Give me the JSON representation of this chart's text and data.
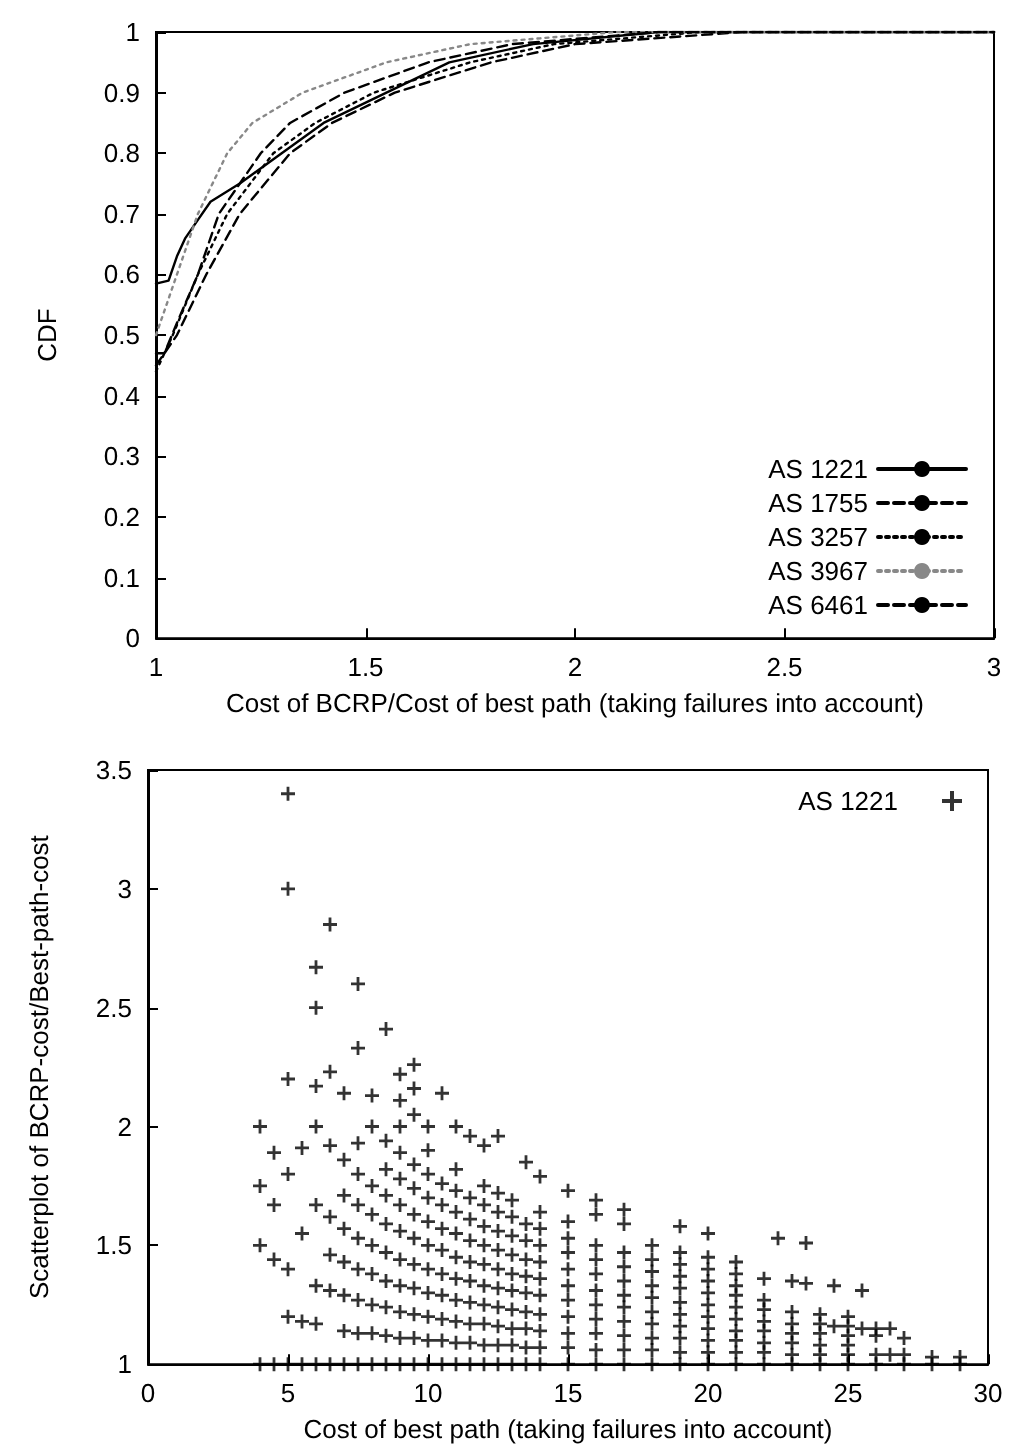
{
  "chart_data": [
    {
      "type": "line",
      "xlabel": "Cost of BCRP/Cost of best path (taking failures into account)",
      "ylabel": "CDF",
      "xlim": [
        1,
        3
      ],
      "xticks": [
        1,
        1.5,
        2,
        2.5,
        3
      ],
      "ylim": [
        0,
        1
      ],
      "yticks": [
        0,
        0.1,
        0.2,
        0.3,
        0.4,
        0.5,
        0.6,
        0.7,
        0.8,
        0.9,
        1
      ],
      "grid": false,
      "legend": "bottom right",
      "marker": "none",
      "series": [
        {
          "name": "AS 1221",
          "color": "#000000",
          "line_style": "solid",
          "x": [
            1,
            1.03,
            1.05,
            1.07,
            1.1,
            1.13,
            1.2,
            1.3,
            1.4,
            1.55,
            1.7,
            1.9,
            2.2,
            3
          ],
          "values": [
            0.585,
            0.59,
            0.63,
            0.66,
            0.69,
            0.72,
            0.75,
            0.8,
            0.85,
            0.9,
            0.95,
            0.98,
            1,
            1
          ]
        },
        {
          "name": "AS 1755",
          "color": "#000000",
          "line_style": "dashed",
          "x": [
            1,
            1.05,
            1.12,
            1.2,
            1.32,
            1.42,
            1.57,
            1.8,
            2.0,
            2.4,
            3
          ],
          "values": [
            0.45,
            0.5,
            0.6,
            0.7,
            0.8,
            0.85,
            0.9,
            0.95,
            0.98,
            1,
            1
          ]
        },
        {
          "name": "AS 3257",
          "color": "#000000",
          "line_style": "dotted",
          "x": [
            1,
            1.04,
            1.1,
            1.17,
            1.28,
            1.38,
            1.52,
            1.75,
            1.95,
            2.3,
            3
          ],
          "values": [
            0.44,
            0.5,
            0.6,
            0.7,
            0.8,
            0.85,
            0.9,
            0.95,
            0.98,
            1,
            1
          ]
        },
        {
          "name": "AS 3967",
          "color": "#888888",
          "line_style": "dotted",
          "x": [
            1,
            1.05,
            1.1,
            1.17,
            1.23,
            1.35,
            1.55,
            1.75,
            2.1,
            3
          ],
          "values": [
            0.5,
            0.6,
            0.7,
            0.8,
            0.85,
            0.9,
            0.95,
            0.98,
            1,
            1
          ]
        },
        {
          "name": "AS 6461",
          "color": "#000000",
          "line_style": "dashed",
          "x": [
            1,
            1.02,
            1.05,
            1.1,
            1.15,
            1.25,
            1.32,
            1.45,
            1.65,
            1.85,
            2.2,
            3
          ],
          "values": [
            0.47,
            0.47,
            0.52,
            0.6,
            0.7,
            0.8,
            0.85,
            0.9,
            0.95,
            0.98,
            1,
            1
          ]
        }
      ]
    },
    {
      "type": "scatter",
      "xlabel": "Cost of best path (taking failures into account)",
      "ylabel": "Scatterplot of BCRP-cost/Best-path-cost",
      "xlim": [
        0,
        30
      ],
      "xticks": [
        0,
        5,
        10,
        15,
        20,
        25,
        30
      ],
      "ylim": [
        1,
        3.5
      ],
      "yticks": [
        1,
        1.5,
        2,
        2.5,
        3,
        3.5
      ],
      "grid": false,
      "legend": "top right",
      "marker": "cross",
      "series": [
        {
          "name": "AS 1221",
          "color": "#000000",
          "x": [
            4,
            4,
            4,
            4,
            4.5,
            4.5,
            4.5,
            4.5,
            5,
            5,
            5,
            5,
            5,
            5,
            5,
            5.5,
            5.5,
            5.5,
            5.5,
            6,
            6,
            6,
            6,
            6,
            6,
            6,
            6,
            6.5,
            6.5,
            6.5,
            6.5,
            6.5,
            6.5,
            6.5,
            7,
            7,
            7,
            7,
            7,
            7,
            7,
            7,
            7.5,
            7.5,
            7.5,
            7.5,
            7.5,
            7.5,
            7.5,
            7.5,
            7.5,
            7.5,
            8,
            8,
            8,
            8,
            8,
            8,
            8,
            8,
            8,
            8.5,
            8.5,
            8.5,
            8.5,
            8.5,
            8.5,
            8.5,
            8.5,
            8.5,
            8.5,
            9,
            9,
            9,
            9,
            9,
            9,
            9,
            9,
            9,
            9,
            9,
            9,
            9.5,
            9.5,
            9.5,
            9.5,
            9.5,
            9.5,
            9.5,
            9.5,
            9.5,
            9.5,
            9.5,
            9.5,
            10,
            10,
            10,
            10,
            10,
            10,
            10,
            10,
            10,
            10,
            10,
            10.5,
            10.5,
            10.5,
            10.5,
            10.5,
            10.5,
            10.5,
            10.5,
            10.5,
            10.5,
            11,
            11,
            11,
            11,
            11,
            11,
            11,
            11,
            11,
            11,
            11,
            11.5,
            11.5,
            11.5,
            11.5,
            11.5,
            11.5,
            11.5,
            11.5,
            11.5,
            11.5,
            12,
            12,
            12,
            12,
            12,
            12,
            12,
            12,
            12,
            12,
            12,
            12.5,
            12.5,
            12.5,
            12.5,
            12.5,
            12.5,
            12.5,
            12.5,
            12.5,
            12.5,
            12.5,
            13,
            13,
            13,
            13,
            13,
            13,
            13,
            13,
            13,
            13,
            13.5,
            13.5,
            13.5,
            13.5,
            13.5,
            13.5,
            13.5,
            13.5,
            13.5,
            13.5,
            14,
            14,
            14,
            14,
            14,
            14,
            14,
            14,
            14,
            14,
            14,
            15,
            15,
            15,
            15,
            15,
            15,
            15,
            15,
            15,
            15,
            15,
            16,
            16,
            16,
            16,
            16,
            16,
            16,
            16,
            16,
            16,
            16,
            17,
            17,
            17,
            17,
            17,
            17,
            17,
            17,
            17,
            17,
            17,
            18,
            18,
            18,
            18,
            18,
            18,
            18,
            18,
            18,
            18,
            19,
            19,
            19,
            19,
            19,
            19,
            19,
            19,
            19,
            19,
            19,
            20,
            20,
            20,
            20,
            20,
            20,
            20,
            20,
            20,
            20,
            20,
            21,
            21,
            21,
            21,
            21,
            21,
            21,
            21,
            21,
            21,
            22,
            22,
            22,
            22,
            22,
            22,
            22,
            22,
            22.5,
            23,
            23,
            23,
            23,
            23,
            23,
            23,
            23.5,
            23.5,
            24,
            24,
            24,
            24,
            24,
            24,
            24.5,
            24.5,
            25,
            25,
            25,
            25,
            25,
            25,
            25.5,
            25.5,
            26,
            26,
            26,
            26,
            26.5,
            26.5,
            27,
            27,
            27,
            28,
            28,
            29,
            29
          ],
          "values": [
            2.0,
            1.75,
            1.5,
            1.0,
            1.89,
            1.67,
            1.44,
            1.0,
            3.4,
            3.0,
            2.2,
            1.8,
            1.4,
            1.2,
            1.0,
            1.91,
            1.55,
            1.18,
            1.0,
            2.67,
            2.5,
            2.17,
            2.0,
            1.67,
            1.33,
            1.17,
            1.0,
            2.85,
            2.23,
            1.92,
            1.62,
            1.46,
            1.31,
            1.0,
            2.14,
            1.86,
            1.71,
            1.57,
            1.43,
            1.29,
            1.14,
            1.0,
            2.6,
            2.33,
            1.93,
            1.8,
            1.67,
            1.53,
            1.4,
            1.27,
            1.13,
            1.0,
            2.13,
            2.0,
            1.75,
            1.63,
            1.5,
            1.38,
            1.25,
            1.13,
            1.0,
            2.41,
            1.94,
            1.82,
            1.71,
            1.59,
            1.47,
            1.35,
            1.24,
            1.12,
            1.0,
            2.22,
            2.11,
            2.0,
            1.89,
            1.78,
            1.67,
            1.56,
            1.44,
            1.33,
            1.22,
            1.11,
            1.0,
            2.26,
            2.16,
            2.05,
            1.84,
            1.74,
            1.63,
            1.53,
            1.42,
            1.32,
            1.21,
            1.11,
            1.0,
            2.0,
            1.9,
            1.8,
            1.7,
            1.6,
            1.5,
            1.4,
            1.3,
            1.2,
            1.1,
            1.0,
            2.14,
            1.76,
            1.67,
            1.57,
            1.48,
            1.38,
            1.29,
            1.19,
            1.1,
            1.0,
            2.0,
            1.82,
            1.73,
            1.64,
            1.55,
            1.45,
            1.36,
            1.27,
            1.18,
            1.09,
            1.0,
            1.96,
            1.7,
            1.61,
            1.52,
            1.43,
            1.35,
            1.26,
            1.17,
            1.09,
            1.0,
            1.92,
            1.75,
            1.67,
            1.58,
            1.5,
            1.42,
            1.33,
            1.25,
            1.17,
            1.08,
            1.0,
            1.96,
            1.72,
            1.64,
            1.56,
            1.48,
            1.4,
            1.32,
            1.24,
            1.16,
            1.08,
            1.0,
            1.69,
            1.62,
            1.54,
            1.46,
            1.38,
            1.31,
            1.23,
            1.15,
            1.08,
            1.0,
            1.85,
            1.59,
            1.52,
            1.44,
            1.37,
            1.3,
            1.22,
            1.15,
            1.07,
            1.0,
            1.79,
            1.64,
            1.57,
            1.5,
            1.43,
            1.36,
            1.29,
            1.21,
            1.14,
            1.07,
            1.0,
            1.73,
            1.6,
            1.53,
            1.47,
            1.4,
            1.33,
            1.27,
            1.2,
            1.13,
            1.07,
            1.0,
            1.69,
            1.63,
            1.5,
            1.44,
            1.38,
            1.31,
            1.25,
            1.19,
            1.13,
            1.06,
            1.0,
            1.65,
            1.59,
            1.47,
            1.41,
            1.35,
            1.29,
            1.24,
            1.18,
            1.12,
            1.06,
            1.0,
            1.5,
            1.44,
            1.39,
            1.33,
            1.28,
            1.22,
            1.17,
            1.11,
            1.06,
            1.0,
            1.58,
            1.47,
            1.42,
            1.37,
            1.32,
            1.26,
            1.21,
            1.16,
            1.11,
            1.05,
            1.0,
            1.55,
            1.45,
            1.4,
            1.35,
            1.3,
            1.25,
            1.2,
            1.15,
            1.1,
            1.05,
            1.0,
            1.43,
            1.38,
            1.33,
            1.29,
            1.24,
            1.19,
            1.14,
            1.1,
            1.05,
            1.0,
            1.36,
            1.27,
            1.23,
            1.18,
            1.14,
            1.09,
            1.05,
            1.0,
            1.53,
            1.35,
            1.22,
            1.17,
            1.13,
            1.09,
            1.04,
            1.0,
            1.51,
            1.34,
            1.21,
            1.17,
            1.13,
            1.08,
            1.04,
            1.0,
            1.33,
            1.16,
            1.2,
            1.16,
            1.12,
            1.08,
            1.04,
            1.0,
            1.31,
            1.15,
            1.15,
            1.12,
            1.04,
            1.0,
            1.15,
            1.04,
            1.11,
            1.04,
            1.0,
            1.03,
            1.0,
            1.03,
            1.0
          ]
        }
      ]
    }
  ]
}
